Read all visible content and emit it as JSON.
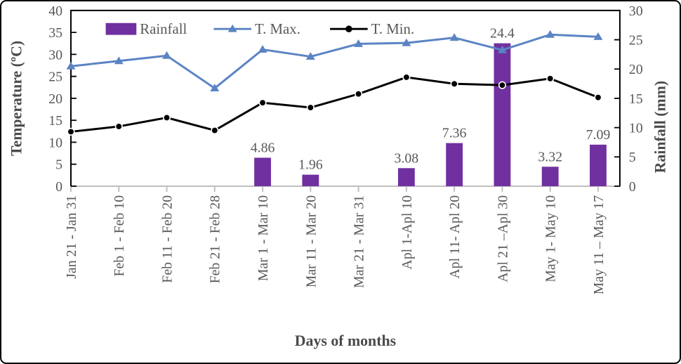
{
  "figure": {
    "background": "#ffffff",
    "border_color": "#000000"
  },
  "chart_data": {
    "type": "combo_bar_line",
    "categories": [
      "Jan 21 - Jan 31",
      "Feb 1 - Feb 10",
      "Feb 11 - Feb 20",
      "Feb 21 - Feb 28",
      "Mar 1 - Mar 10",
      "Mar 11 - Mar 20",
      "Mar 21 - Mar 31",
      "Apl 1-Apl 10",
      "Apl 11- Apl 20",
      "Apl 21 –Apl 30",
      "May 1- May 10",
      "May 11 – May 17"
    ],
    "series": [
      {
        "name": "Rainfall",
        "type": "bar",
        "axis": "right",
        "color": "#7030A0",
        "values": [
          null,
          null,
          null,
          null,
          4.86,
          1.96,
          null,
          3.08,
          7.36,
          24.4,
          3.32,
          7.09
        ],
        "data_labels": true
      },
      {
        "name": "T. Max.",
        "type": "line",
        "axis": "left",
        "marker": "triangle",
        "color": "#5B84C4",
        "values": [
          27.3,
          28.5,
          29.7,
          22.3,
          31.1,
          29.5,
          32.4,
          32.6,
          33.8,
          31.0,
          34.5,
          34.0
        ]
      },
      {
        "name": "T. Min.",
        "type": "line",
        "axis": "left",
        "marker": "circle",
        "color": "#000000",
        "values": [
          12.4,
          13.6,
          15.6,
          12.7,
          19.0,
          17.9,
          21.0,
          24.8,
          23.3,
          23.0,
          24.5,
          20.2
        ]
      }
    ],
    "left_axis": {
      "title": "Temperature (ºC)",
      "min": 0,
      "max": 40,
      "step": 5,
      "ticks": [
        "40",
        "35",
        "30",
        "25",
        "20",
        "15",
        "10",
        "5",
        "0"
      ]
    },
    "right_axis": {
      "title": "Rainfall (mm)",
      "min": 0,
      "max": 30,
      "step": 5,
      "ticks": [
        "30",
        "25",
        "20",
        "15",
        "10",
        "5",
        "0"
      ]
    },
    "x_axis": {
      "title": "Days of months",
      "line_color": "#BFBFBF"
    },
    "legend": {
      "position": "top-inside",
      "entries": [
        "Rainfall",
        "T. Max.",
        "T. Min."
      ]
    },
    "grid": false
  }
}
